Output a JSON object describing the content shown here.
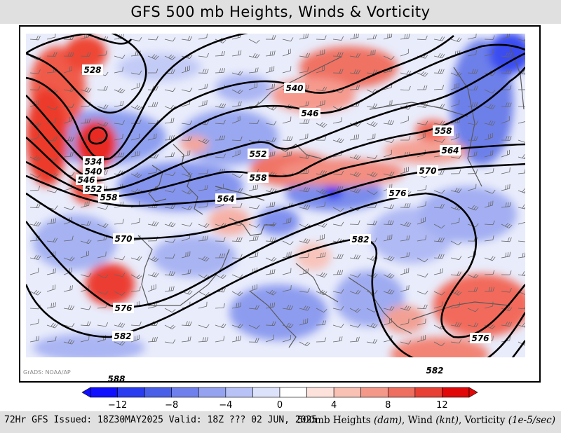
{
  "title": "GFS 500 mb Heights, Winds & Vorticity",
  "credit": "GrADS: NOAA/AP",
  "footer": {
    "issued": "72Hr GFS Issued: 18Z30MAY2025 Valid: 18Z ??? 02 JUN, 2025",
    "desc_main": "500mb Heights",
    "unit_heights": "(dam)",
    "desc_wind": "Wind",
    "unit_wind": "(knt)",
    "desc_vort": "Vorticity",
    "unit_vort": "(1e-5/sec)"
  },
  "colorbar": {
    "tick_labels": [
      "−12",
      "−8",
      "−4",
      "0",
      "4",
      "8",
      "12"
    ],
    "colors": [
      "#1010ff",
      "#2a3cf0",
      "#4a5fe8",
      "#6f80ec",
      "#95a2f0",
      "#b8c2f6",
      "#dde2fb",
      "#ffffff",
      "#fde2dc",
      "#f9c0b4",
      "#f4988a",
      "#ee6e60",
      "#e84034",
      "#e00808"
    ]
  },
  "contours": {
    "labels": [
      "528",
      "534",
      "540",
      "546",
      "552",
      "558",
      "564",
      "570",
      "576",
      "582",
      "588"
    ]
  }
}
